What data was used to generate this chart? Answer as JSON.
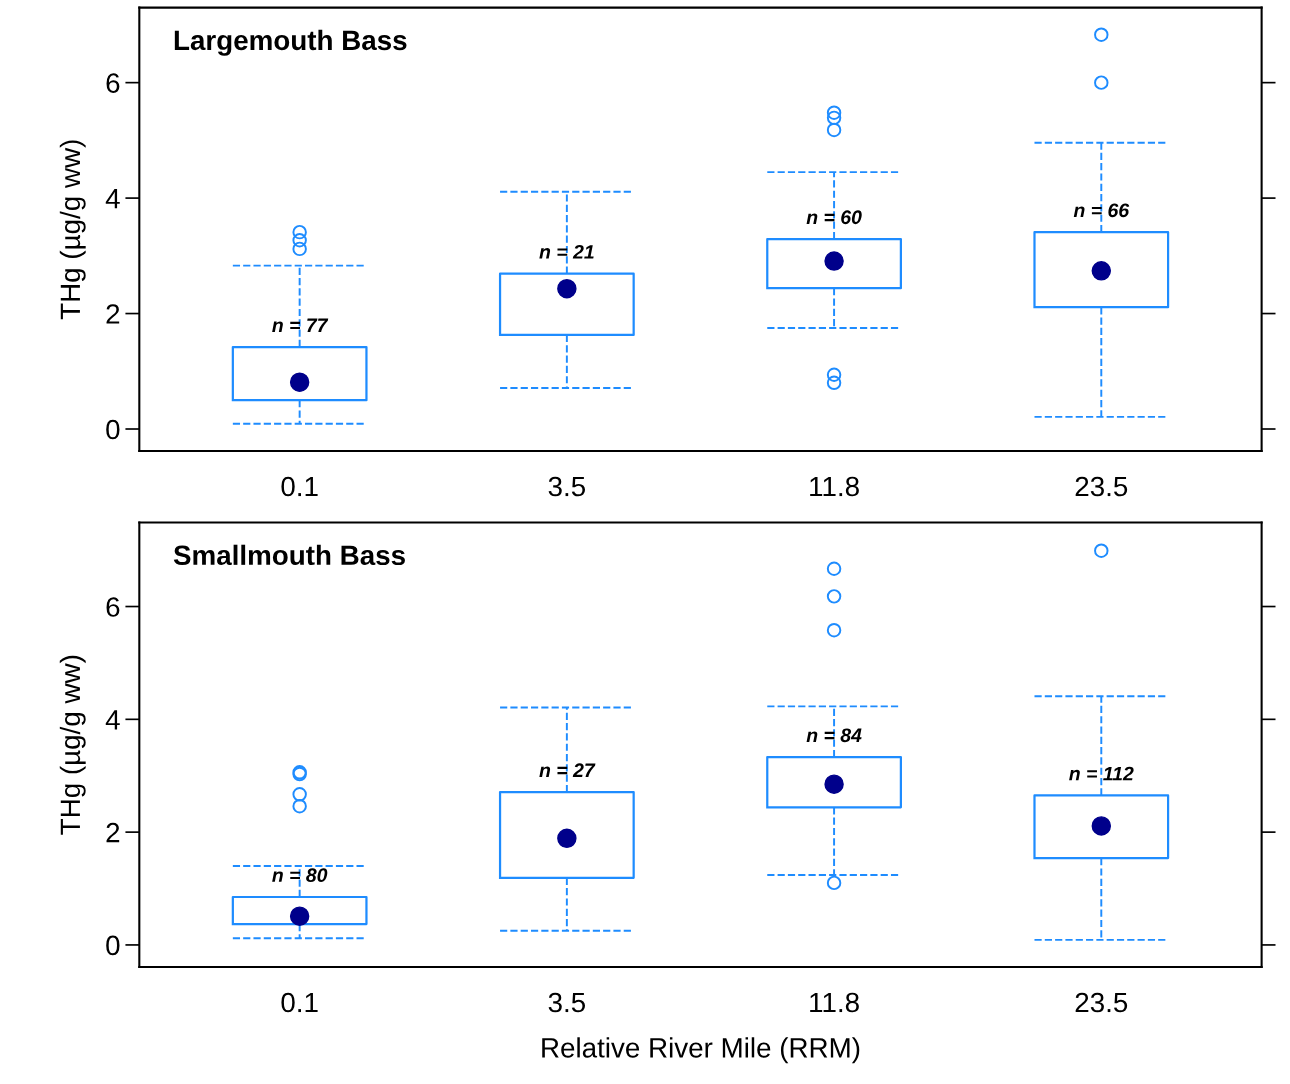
{
  "chart_data": [
    {
      "type": "box",
      "title": "Largemouth Bass",
      "ylabel": "THg (µg/g ww)",
      "categories": [
        "0.1",
        "3.5",
        "11.8",
        "23.5"
      ],
      "color": "#1e8cff",
      "ylim": [
        -0.38,
        7.3
      ],
      "yticks": [
        0,
        2,
        4,
        6
      ],
      "grid": false,
      "boxes": [
        {
          "low": 0.09,
          "q1": 0.5,
          "median": 0.81,
          "q3": 1.42,
          "high": 2.83,
          "outliers": [
            3.41,
            3.27,
            3.12
          ]
        },
        {
          "low": 0.71,
          "q1": 1.63,
          "median": 2.43,
          "q3": 2.69,
          "high": 4.11
        },
        {
          "low": 1.75,
          "q1": 2.44,
          "median": 2.91,
          "q3": 3.29,
          "high": 4.45,
          "outliers": [
            5.48,
            5.39,
            5.18,
            0.94,
            0.8
          ]
        },
        {
          "low": 0.21,
          "q1": 2.11,
          "median": 2.74,
          "q3": 3.41,
          "high": 4.96,
          "outliers": [
            6.83,
            6.0
          ]
        }
      ],
      "annotations": [
        {
          "text": "n = 77",
          "x": "0.1",
          "y": 1.42
        },
        {
          "text": "n = 21",
          "x": "3.5",
          "y": 2.69
        },
        {
          "text": "n = 60",
          "x": "11.8",
          "y": 3.29
        },
        {
          "text": "n = 66",
          "x": "23.5",
          "y": 3.41
        }
      ]
    },
    {
      "type": "box",
      "title": "Smallmouth Bass",
      "ylabel": "THg (µg/g ww)",
      "xlabel": "Relative River Mile (RRM)",
      "categories": [
        "0.1",
        "3.5",
        "11.8",
        "23.5"
      ],
      "color": "#1e8cff",
      "ylim": [
        -0.39,
        7.49
      ],
      "yticks": [
        0,
        2,
        4,
        6
      ],
      "grid": false,
      "boxes": [
        {
          "low": 0.12,
          "q1": 0.37,
          "median": 0.51,
          "q3": 0.85,
          "high": 1.4,
          "outliers": [
            3.06,
            3.03,
            2.67,
            2.46
          ]
        },
        {
          "low": 0.25,
          "q1": 1.19,
          "median": 1.89,
          "q3": 2.71,
          "high": 4.21
        },
        {
          "low": 1.24,
          "q1": 2.44,
          "median": 2.85,
          "q3": 3.33,
          "high": 4.23,
          "outliers": [
            6.67,
            6.18,
            5.58,
            1.1
          ]
        },
        {
          "low": 0.09,
          "q1": 1.54,
          "median": 2.11,
          "q3": 2.65,
          "high": 4.41,
          "outliers": [
            6.99
          ]
        }
      ],
      "annotations": [
        {
          "text": "n = 80",
          "x": "0.1",
          "y": 0.85
        },
        {
          "text": "n = 27",
          "x": "3.5",
          "y": 2.71
        },
        {
          "text": "n = 84",
          "x": "11.8",
          "y": 3.33
        },
        {
          "text": "n = 112",
          "x": "23.5",
          "y": 2.65
        }
      ]
    }
  ]
}
